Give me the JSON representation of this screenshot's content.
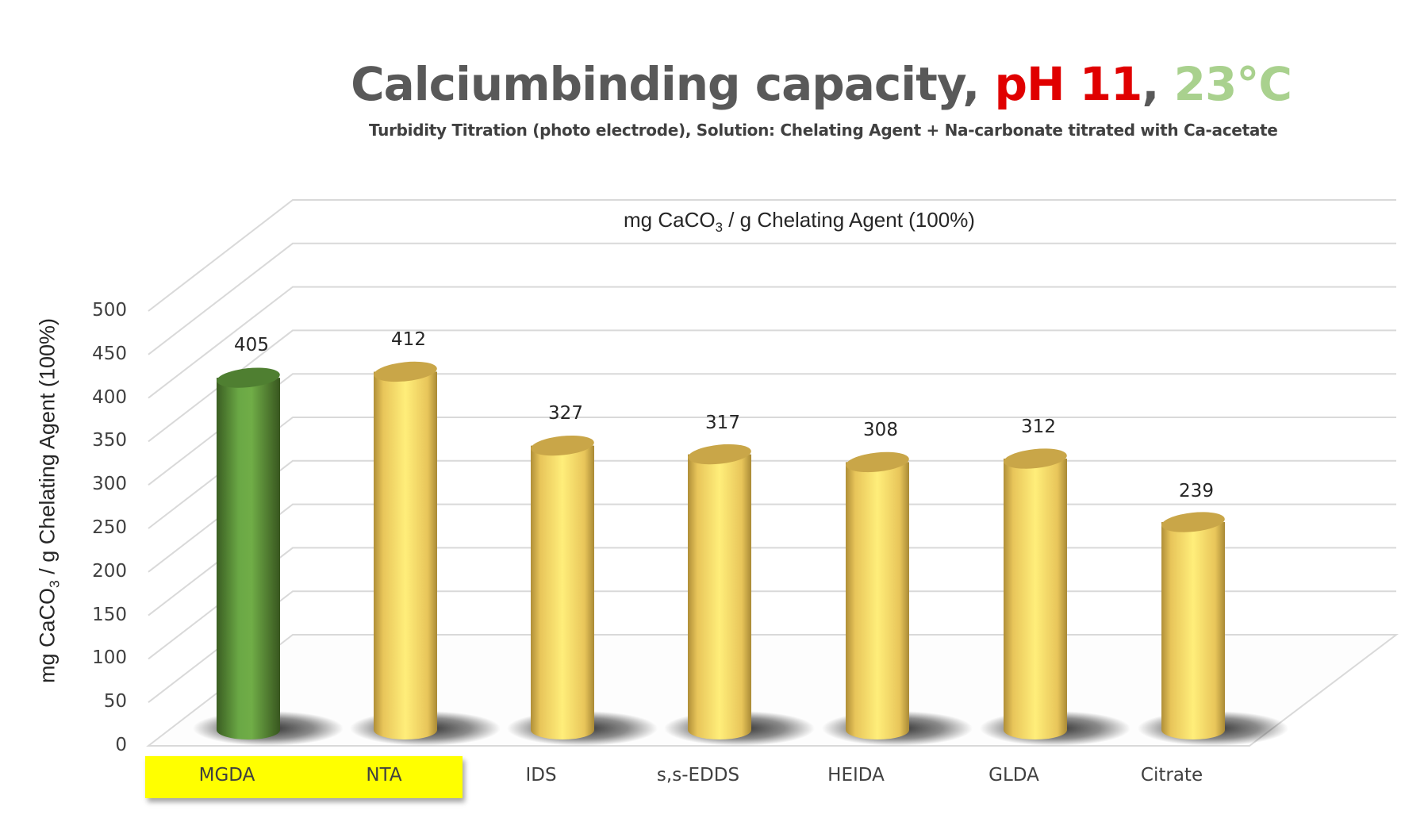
{
  "title": {
    "main": "Calciumbinding capacity, ",
    "ph": "pH 11",
    "sep": ", ",
    "temp": "23°C",
    "subtitle": "Turbidity Titration (photo electrode), Solution: Chelating Agent + Na-carbonate titrated with Ca-acetate"
  },
  "colors": {
    "title": "#595959",
    "ph": "#e00000",
    "temp": "#a9d18e",
    "highlight_bar": "#548235",
    "other_bars": "#ffd966",
    "category_highlight": "#ffff00"
  },
  "inner_title": {
    "pre": "mg CaCO",
    "sub": "3",
    "post": " / g Chelating Agent (100%)"
  },
  "yaxis": {
    "pre": "mg CaCO",
    "sub": "3",
    "post": " / g Chelating Agent (100%)",
    "ticks": [
      "500",
      "450",
      "400",
      "350",
      "300",
      "250",
      "200",
      "150",
      "100",
      "50",
      "0"
    ]
  },
  "categories": [
    "MGDA",
    "NTA",
    "IDS",
    "s,s-EDDS",
    "HEIDA",
    "GLDA",
    "Citrate"
  ],
  "values": [
    "405",
    "412",
    "327",
    "317",
    "308",
    "312",
    "239"
  ],
  "chart_data": {
    "type": "bar",
    "title": "Calciumbinding capacity, pH 11, 23°C",
    "subtitle": "Turbidity Titration (photo electrode), Solution: Chelating Agent + Na-carbonate titrated with Ca-acetate",
    "series_title": "mg CaCO3 / g Chelating Agent (100%)",
    "categories": [
      "MGDA",
      "NTA",
      "IDS",
      "s,s-EDDS",
      "HEIDA",
      "GLDA",
      "Citrate"
    ],
    "values": [
      405,
      412,
      327,
      317,
      308,
      312,
      239
    ],
    "xlabel": "",
    "ylabel": "mg CaCO3 / g Chelating Agent (100%)",
    "ylim": [
      0,
      500
    ],
    "yticks": [
      0,
      50,
      100,
      150,
      200,
      250,
      300,
      350,
      400,
      450,
      500
    ],
    "grid": true,
    "style": "3D cylinder",
    "highlighted_categories": [
      "MGDA",
      "NTA"
    ],
    "bar_colors": [
      "#548235",
      "#ffd966",
      "#ffd966",
      "#ffd966",
      "#ffd966",
      "#ffd966",
      "#ffd966"
    ]
  }
}
